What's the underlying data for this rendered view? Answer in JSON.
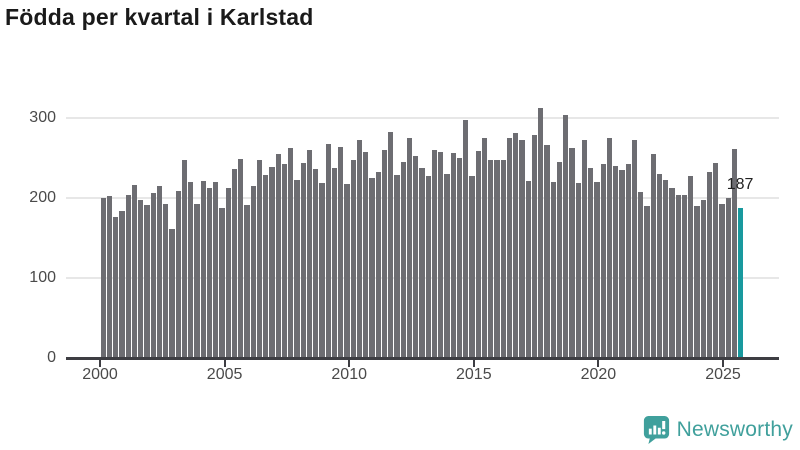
{
  "title": "Födda per kvartal i Karlstad",
  "annotation": {
    "label": "187"
  },
  "branding": {
    "name": "Newsworthy",
    "color": "#40a09c",
    "icon": "bar-chart-speech-bubble-icon"
  },
  "chart_data": {
    "type": "bar",
    "title": "Födda per kvartal i Karlstad",
    "x_tick_labels": [
      "2000",
      "2005",
      "2010",
      "2015",
      "2020",
      "2025"
    ],
    "y_tick_labels": [
      "0",
      "100",
      "200",
      "300"
    ],
    "y_tick_values": [
      0,
      100,
      200,
      300
    ],
    "ylim": [
      0,
      320
    ],
    "grid": "horizontal",
    "legend": "none",
    "bar_color": "#6d6d72",
    "highlight_color": "#18999e",
    "highlight_index": 102,
    "highlight_value_label": "187",
    "start_period": "2000-Q1",
    "end_period": "2025-Q3",
    "frequency": "quarterly",
    "series": [
      {
        "name": "Födda per kvartal",
        "values": [
          200,
          202,
          176,
          184,
          204,
          216,
          197,
          191,
          206,
          215,
          193,
          161,
          209,
          248,
          220,
          193,
          221,
          213,
          220,
          188,
          213,
          236,
          249,
          191,
          215,
          248,
          229,
          239,
          255,
          242,
          263,
          222,
          244,
          260,
          236,
          219,
          267,
          237,
          264,
          217,
          248,
          272,
          257,
          225,
          233,
          260,
          283,
          229,
          245,
          275,
          252,
          238,
          228,
          260,
          258,
          230,
          256,
          250,
          298,
          228,
          259,
          275,
          248,
          248,
          248,
          275,
          281,
          273,
          221,
          279,
          313,
          266,
          220,
          245,
          304,
          263,
          219,
          273,
          237,
          220,
          242,
          275,
          240,
          235,
          243,
          273,
          208,
          190,
          255,
          230,
          223,
          212,
          204,
          204,
          227,
          190,
          198,
          233,
          244,
          193,
          200,
          261,
          187
        ]
      }
    ]
  }
}
